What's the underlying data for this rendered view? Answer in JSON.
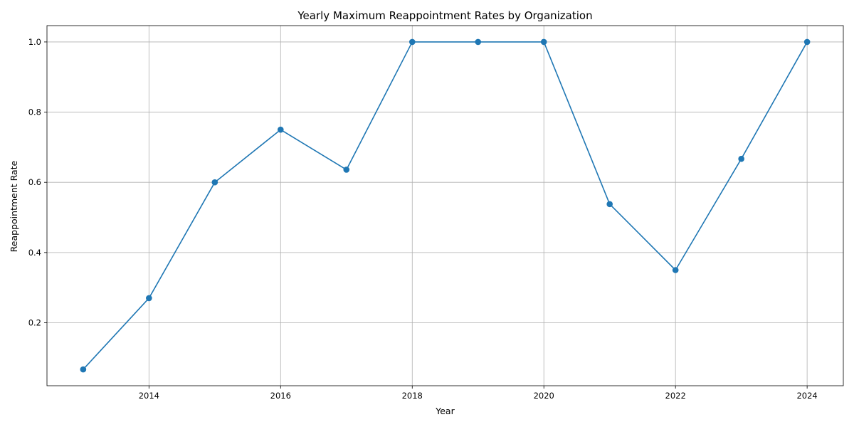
{
  "chart_data": {
    "type": "line",
    "title": "Yearly Maximum Reappointment Rates by Organization",
    "xlabel": "Year",
    "ylabel": "Reappointment Rate",
    "x": [
      2013,
      2014,
      2015,
      2016,
      2017,
      2018,
      2019,
      2020,
      2021,
      2022,
      2023,
      2024
    ],
    "series": [
      {
        "values": [
          0.067,
          0.27,
          0.6,
          0.75,
          0.636,
          1.0,
          1.0,
          1.0,
          0.538,
          0.35,
          0.667,
          1.0
        ],
        "color": "#1f77b4"
      }
    ],
    "xlim": [
      2012.45,
      2024.55
    ],
    "ylim": [
      0.0205,
      1.0465
    ],
    "xticks": [
      2014,
      2016,
      2018,
      2020,
      2022,
      2024
    ],
    "xtick_labels": [
      "2014",
      "2016",
      "2018",
      "2020",
      "2022",
      "2024"
    ],
    "yticks": [
      0.2,
      0.4,
      0.6,
      0.8,
      1.0
    ],
    "ytick_labels": [
      "0.2",
      "0.4",
      "0.6",
      "0.8",
      "1.0"
    ],
    "grid": true,
    "marker": "circle"
  }
}
